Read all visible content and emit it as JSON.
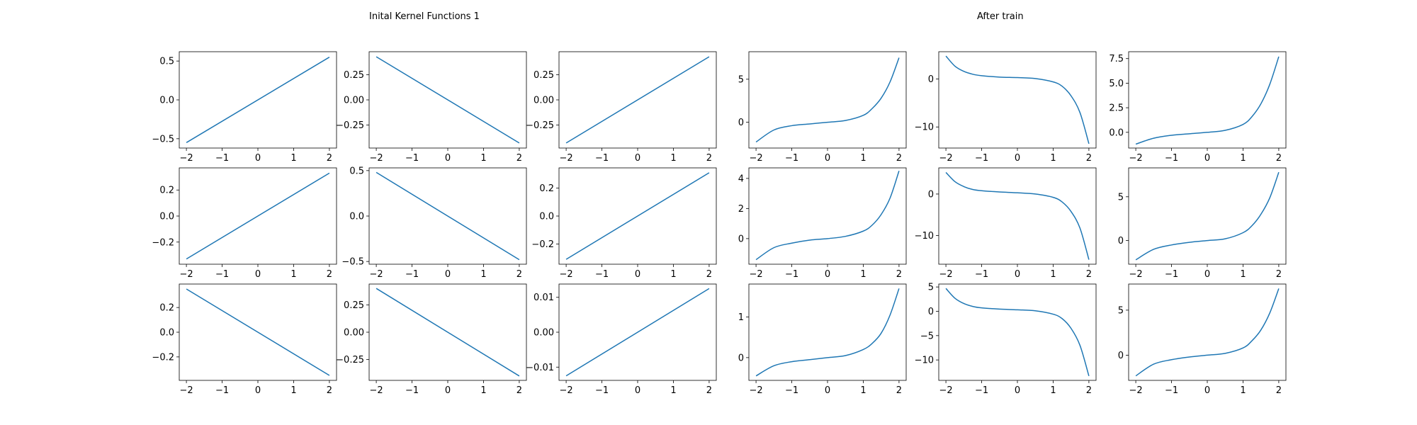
{
  "titles": {
    "left": "Inital Kernel Functions 1",
    "right": "After train"
  },
  "colors": {
    "line": "#1f77b4",
    "axes": "#000000",
    "background": "#ffffff"
  },
  "chart_data": [
    {
      "type": "line",
      "x": [
        -2,
        2
      ],
      "series": [
        {
          "values": [
            -0.55,
            0.55
          ]
        }
      ],
      "xlim": [
        -2.2,
        2.2
      ],
      "ylim": [
        -0.62,
        0.62
      ],
      "xticks": [
        -2,
        -1,
        0,
        1,
        2
      ],
      "xtick_labels": [
        "−2",
        "−1",
        "0",
        "1",
        "2"
      ],
      "yticks": [
        -0.5,
        0,
        0.5
      ],
      "ytick_labels": [
        "−0.5",
        "0.0",
        "0.5"
      ]
    },
    {
      "type": "line",
      "x": [
        -2,
        2
      ],
      "series": [
        {
          "values": [
            0.43,
            -0.43
          ]
        }
      ],
      "xlim": [
        -2.2,
        2.2
      ],
      "ylim": [
        -0.48,
        0.48
      ],
      "xticks": [
        -2,
        -1,
        0,
        1,
        2
      ],
      "xtick_labels": [
        "−2",
        "−1",
        "0",
        "1",
        "2"
      ],
      "yticks": [
        -0.25,
        0,
        0.25
      ],
      "ytick_labels": [
        "−0.25",
        "0.00",
        "0.25"
      ]
    },
    {
      "type": "line",
      "x": [
        -2,
        2
      ],
      "series": [
        {
          "values": [
            -0.43,
            0.43
          ]
        }
      ],
      "xlim": [
        -2.2,
        2.2
      ],
      "ylim": [
        -0.48,
        0.48
      ],
      "xticks": [
        -2,
        -1,
        0,
        1,
        2
      ],
      "xtick_labels": [
        "−2",
        "−1",
        "0",
        "1",
        "2"
      ],
      "yticks": [
        -0.25,
        0,
        0.25
      ],
      "ytick_labels": [
        "−0.25",
        "0.00",
        "0.25"
      ]
    },
    {
      "type": "line",
      "x": [
        -2,
        -1.5,
        -1,
        -0.5,
        0,
        0.5,
        1,
        1.25,
        1.5,
        1.75,
        2
      ],
      "series": [
        {
          "values": [
            -2.3,
            -0.9,
            -0.4,
            -0.2,
            0,
            0.2,
            0.8,
            1.6,
            2.8,
            4.7,
            7.5
          ]
        }
      ],
      "xlim": [
        -2.2,
        2.2
      ],
      "ylim": [
        -3.0,
        8.2
      ],
      "xticks": [
        -2,
        -1,
        0,
        1,
        2
      ],
      "xtick_labels": [
        "−2",
        "−1",
        "0",
        "1",
        "2"
      ],
      "yticks": [
        0,
        5
      ],
      "ytick_labels": [
        "0",
        "5"
      ]
    },
    {
      "type": "line",
      "x": [
        -2,
        -1.75,
        -1.5,
        -1.25,
        -1,
        -0.5,
        0,
        0.5,
        1,
        1.25,
        1.5,
        1.75,
        2
      ],
      "series": [
        {
          "values": [
            4.8,
            2.7,
            1.6,
            1.0,
            0.7,
            0.4,
            0.3,
            0.1,
            -0.6,
            -1.5,
            -3.5,
            -7.0,
            -13.5
          ]
        }
      ],
      "xlim": [
        -2.2,
        2.2
      ],
      "ylim": [
        -14.4,
        5.7
      ],
      "xticks": [
        -2,
        -1,
        0,
        1,
        2
      ],
      "xtick_labels": [
        "−2",
        "−1",
        "0",
        "1",
        "2"
      ],
      "yticks": [
        -10,
        0
      ],
      "ytick_labels": [
        "−10",
        "0"
      ]
    },
    {
      "type": "line",
      "x": [
        -2,
        -1.5,
        -1,
        -0.5,
        0,
        0.5,
        1,
        1.25,
        1.5,
        1.75,
        2
      ],
      "series": [
        {
          "values": [
            -1.2,
            -0.6,
            -0.3,
            -0.15,
            0,
            0.2,
            0.8,
            1.6,
            2.9,
            4.9,
            7.7
          ]
        }
      ],
      "xlim": [
        -2.2,
        2.2
      ],
      "ylim": [
        -1.6,
        8.2
      ],
      "xticks": [
        -2,
        -1,
        0,
        1,
        2
      ],
      "xtick_labels": [
        "−2",
        "−1",
        "0",
        "1",
        "2"
      ],
      "yticks": [
        0,
        2.5,
        5,
        7.5
      ],
      "ytick_labels": [
        "0.0",
        "2.5",
        "5.0",
        "7.5"
      ]
    },
    {
      "type": "line",
      "x": [
        -2,
        2
      ],
      "series": [
        {
          "values": [
            -0.33,
            0.33
          ]
        }
      ],
      "xlim": [
        -2.2,
        2.2
      ],
      "ylim": [
        -0.37,
        0.37
      ],
      "xticks": [
        -2,
        -1,
        0,
        1,
        2
      ],
      "xtick_labels": [
        "−2",
        "−1",
        "0",
        "1",
        "2"
      ],
      "yticks": [
        -0.2,
        0,
        0.2
      ],
      "ytick_labels": [
        "−0.2",
        "0.0",
        "0.2"
      ]
    },
    {
      "type": "line",
      "x": [
        -2,
        2
      ],
      "series": [
        {
          "values": [
            0.48,
            -0.48
          ]
        }
      ],
      "xlim": [
        -2.2,
        2.2
      ],
      "ylim": [
        -0.53,
        0.53
      ],
      "xticks": [
        -2,
        -1,
        0,
        1,
        2
      ],
      "xtick_labels": [
        "−2",
        "−1",
        "0",
        "1",
        "2"
      ],
      "yticks": [
        -0.5,
        0,
        0.5
      ],
      "ytick_labels": [
        "−0.5",
        "0.0",
        "0.5"
      ]
    },
    {
      "type": "line",
      "x": [
        -2,
        2
      ],
      "series": [
        {
          "values": [
            -0.31,
            0.31
          ]
        }
      ],
      "xlim": [
        -2.2,
        2.2
      ],
      "ylim": [
        -0.345,
        0.345
      ],
      "xticks": [
        -2,
        -1,
        0,
        1,
        2
      ],
      "xtick_labels": [
        "−2",
        "−1",
        "0",
        "1",
        "2"
      ],
      "yticks": [
        -0.2,
        0,
        0.2
      ],
      "ytick_labels": [
        "−0.2",
        "0.0",
        "0.2"
      ]
    },
    {
      "type": "line",
      "x": [
        -2,
        -1.5,
        -1,
        -0.5,
        0,
        0.5,
        1,
        1.25,
        1.5,
        1.75,
        2
      ],
      "series": [
        {
          "values": [
            -1.4,
            -0.6,
            -0.3,
            -0.1,
            0,
            0.15,
            0.5,
            0.9,
            1.6,
            2.7,
            4.5
          ]
        }
      ],
      "xlim": [
        -2.2,
        2.2
      ],
      "ylim": [
        -1.7,
        4.7
      ],
      "xticks": [
        -2,
        -1,
        0,
        1,
        2
      ],
      "xtick_labels": [
        "−2",
        "−1",
        "0",
        "1",
        "2"
      ],
      "yticks": [
        0,
        2,
        4
      ],
      "ytick_labels": [
        "0",
        "2",
        "4"
      ]
    },
    {
      "type": "line",
      "x": [
        -2,
        -1.75,
        -1.5,
        -1.25,
        -1,
        -0.5,
        0,
        0.5,
        1,
        1.25,
        1.5,
        1.75,
        2
      ],
      "series": [
        {
          "values": [
            5.2,
            3.0,
            1.8,
            1.1,
            0.8,
            0.5,
            0.3,
            0,
            -0.8,
            -1.9,
            -4.2,
            -8.2,
            -15.8
          ]
        }
      ],
      "xlim": [
        -2.2,
        2.2
      ],
      "ylim": [
        -16.9,
        6.3
      ],
      "xticks": [
        -2,
        -1,
        0,
        1,
        2
      ],
      "xtick_labels": [
        "−2",
        "−1",
        "0",
        "1",
        "2"
      ],
      "yticks": [
        -10,
        0
      ],
      "ytick_labels": [
        "−10",
        "0"
      ]
    },
    {
      "type": "line",
      "x": [
        -2,
        -1.5,
        -1,
        -0.5,
        0,
        0.5,
        1,
        1.25,
        1.5,
        1.75,
        2
      ],
      "series": [
        {
          "values": [
            -2.2,
            -1.0,
            -0.5,
            -0.2,
            0,
            0.2,
            0.9,
            1.7,
            3.0,
            4.9,
            7.8
          ]
        }
      ],
      "xlim": [
        -2.2,
        2.2
      ],
      "ylim": [
        -2.7,
        8.3
      ],
      "xticks": [
        -2,
        -1,
        0,
        1,
        2
      ],
      "xtick_labels": [
        "−2",
        "−1",
        "0",
        "1",
        "2"
      ],
      "yticks": [
        0,
        5
      ],
      "ytick_labels": [
        "0",
        "5"
      ]
    },
    {
      "type": "line",
      "x": [
        -2,
        2
      ],
      "series": [
        {
          "values": [
            0.35,
            -0.35
          ]
        }
      ],
      "xlim": [
        -2.2,
        2.2
      ],
      "ylim": [
        -0.39,
        0.39
      ],
      "xticks": [
        -2,
        -1,
        0,
        1,
        2
      ],
      "xtick_labels": [
        "−2",
        "−1",
        "0",
        "1",
        "2"
      ],
      "yticks": [
        -0.2,
        0,
        0.2
      ],
      "ytick_labels": [
        "−0.2",
        "0.0",
        "0.2"
      ]
    },
    {
      "type": "line",
      "x": [
        -2,
        2
      ],
      "series": [
        {
          "values": [
            0.4,
            -0.4
          ]
        }
      ],
      "xlim": [
        -2.2,
        2.2
      ],
      "ylim": [
        -0.44,
        0.44
      ],
      "xticks": [
        -2,
        -1,
        0,
        1,
        2
      ],
      "xtick_labels": [
        "−2",
        "−1",
        "0",
        "1",
        "2"
      ],
      "yticks": [
        -0.25,
        0,
        0.25
      ],
      "ytick_labels": [
        "−0.25",
        "0.00",
        "0.25"
      ]
    },
    {
      "type": "line",
      "x": [
        -2,
        2
      ],
      "series": [
        {
          "values": [
            -0.0125,
            0.0125
          ]
        }
      ],
      "xlim": [
        -2.2,
        2.2
      ],
      "ylim": [
        -0.0138,
        0.0138
      ],
      "xticks": [
        -2,
        -1,
        0,
        1,
        2
      ],
      "xtick_labels": [
        "−2",
        "−1",
        "0",
        "1",
        "2"
      ],
      "yticks": [
        -0.01,
        0,
        0.01
      ],
      "ytick_labels": [
        "−0.01",
        "0.00",
        "0.01"
      ]
    },
    {
      "type": "line",
      "x": [
        -2,
        -1.5,
        -1,
        -0.5,
        0,
        0.5,
        1,
        1.25,
        1.5,
        1.75,
        2
      ],
      "series": [
        {
          "values": [
            -0.45,
            -0.2,
            -0.1,
            -0.05,
            0,
            0.05,
            0.2,
            0.35,
            0.6,
            1.05,
            1.7
          ]
        }
      ],
      "xlim": [
        -2.2,
        2.2
      ],
      "ylim": [
        -0.56,
        1.81
      ],
      "xticks": [
        -2,
        -1,
        0,
        1,
        2
      ],
      "xtick_labels": [
        "−2",
        "−1",
        "0",
        "1",
        "2"
      ],
      "yticks": [
        0,
        1
      ],
      "ytick_labels": [
        "0",
        "1"
      ]
    },
    {
      "type": "line",
      "x": [
        -2,
        -1.75,
        -1.5,
        -1.25,
        -1,
        -0.5,
        0,
        0.5,
        1,
        1.25,
        1.5,
        1.75,
        2
      ],
      "series": [
        {
          "values": [
            4.7,
            2.7,
            1.6,
            1.0,
            0.7,
            0.45,
            0.3,
            0.1,
            -0.6,
            -1.5,
            -3.5,
            -7.0,
            -13.3
          ]
        }
      ],
      "xlim": [
        -2.2,
        2.2
      ],
      "ylim": [
        -14.2,
        5.6
      ],
      "xticks": [
        -2,
        -1,
        0,
        1,
        2
      ],
      "xtick_labels": [
        "−2",
        "−1",
        "0",
        "1",
        "2"
      ],
      "yticks": [
        -10,
        -5,
        0,
        5
      ],
      "ytick_labels": [
        "−10",
        "−5",
        "0",
        "5"
      ]
    },
    {
      "type": "line",
      "x": [
        -2,
        -1.5,
        -1,
        -0.5,
        0,
        0.5,
        1,
        1.25,
        1.5,
        1.75,
        2
      ],
      "series": [
        {
          "values": [
            -2.3,
            -1.0,
            -0.5,
            -0.2,
            0,
            0.2,
            0.8,
            1.6,
            2.8,
            4.7,
            7.4
          ]
        }
      ],
      "xlim": [
        -2.2,
        2.2
      ],
      "ylim": [
        -2.8,
        7.9
      ],
      "xticks": [
        -2,
        -1,
        0,
        1,
        2
      ],
      "xtick_labels": [
        "−2",
        "−1",
        "0",
        "1",
        "2"
      ],
      "yticks": [
        0,
        5
      ],
      "ytick_labels": [
        "0",
        "5"
      ]
    }
  ]
}
